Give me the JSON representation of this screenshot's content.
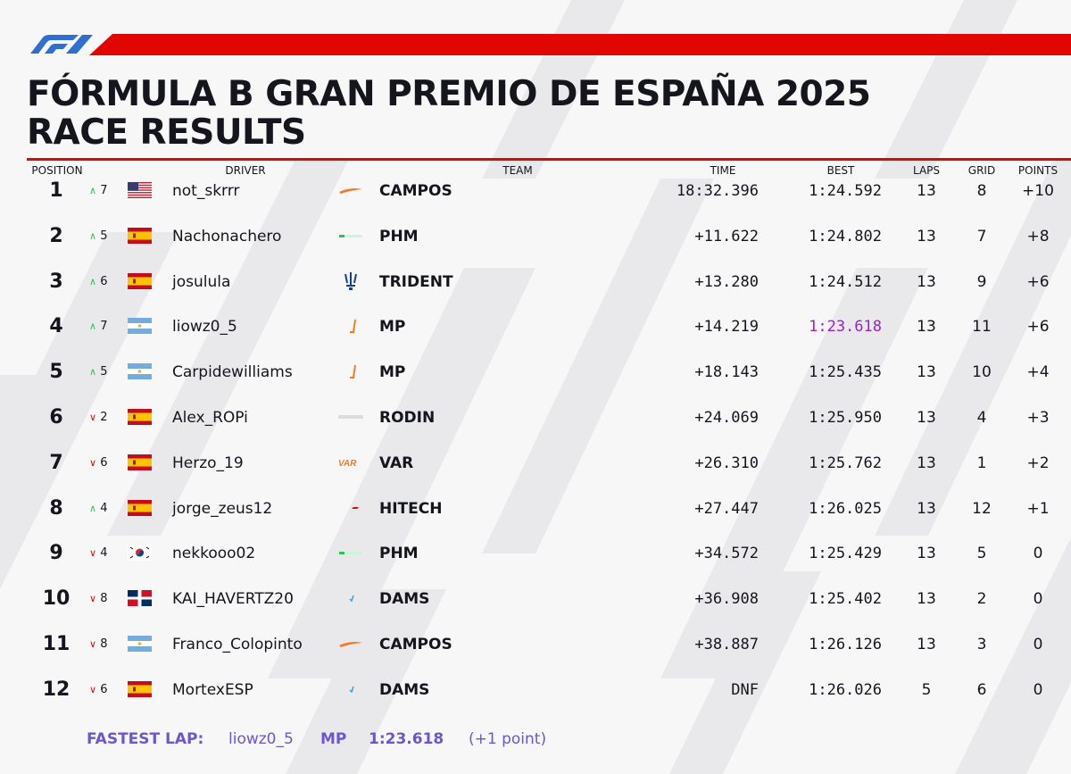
{
  "header": {
    "title_line1": "FÓRMULA B GRAN PREMIO DE ESPAÑA 2025",
    "title_line2": "RACE RESULTS",
    "brand_logo": "f1-logo",
    "accent_color": "#e10600"
  },
  "columns": {
    "position": "POSITION",
    "driver": "DRIVER",
    "team": "TEAM",
    "time": "TIME",
    "best": "BEST",
    "laps": "LAPS",
    "grid": "GRID",
    "points": "POINTS"
  },
  "rows": [
    {
      "position": "1",
      "dir": "up",
      "change": "7",
      "flag": "usa-flag",
      "driver": "not_skrrr",
      "team_logo": "campos-logo",
      "team": "CAMPOS",
      "time": "18:32.396",
      "best": "1:24.592",
      "laps": "13",
      "grid": "8",
      "points": "+10"
    },
    {
      "position": "2",
      "dir": "up",
      "change": "5",
      "flag": "spain-flag",
      "driver": "Nachonachero",
      "team_logo": "phm-logo",
      "team": "PHM",
      "time": "+11.622",
      "best": "1:24.802",
      "laps": "13",
      "grid": "7",
      "points": "+8"
    },
    {
      "position": "3",
      "dir": "up",
      "change": "6",
      "flag": "spain-flag",
      "driver": "josulula",
      "team_logo": "trident-logo",
      "team": "TRIDENT",
      "time": "+13.280",
      "best": "1:24.512",
      "laps": "13",
      "grid": "9",
      "points": "+6"
    },
    {
      "position": "4",
      "dir": "up",
      "change": "7",
      "flag": "argentina-flag",
      "driver": "liowz0_5",
      "team_logo": "mp-logo",
      "team": "MP",
      "time": "+14.219",
      "best": "1:23.618",
      "fastest": true,
      "laps": "13",
      "grid": "11",
      "points": "+6"
    },
    {
      "position": "5",
      "dir": "up",
      "change": "5",
      "flag": "argentina-flag",
      "driver": "Carpidewilliams",
      "team_logo": "mp-logo",
      "team": "MP",
      "time": "+18.143",
      "best": "1:25.435",
      "laps": "13",
      "grid": "10",
      "points": "+4"
    },
    {
      "position": "6",
      "dir": "down",
      "change": "2",
      "flag": "spain-flag",
      "driver": "Alex_ROPi",
      "team_logo": "rodin-logo",
      "team": "RODIN",
      "time": "+24.069",
      "best": "1:25.950",
      "laps": "13",
      "grid": "4",
      "points": "+3"
    },
    {
      "position": "7",
      "dir": "down",
      "change": "6",
      "flag": "spain-flag",
      "driver": "Herzo_19",
      "team_logo": "var-logo",
      "team": "VAR",
      "time": "+26.310",
      "best": "1:25.762",
      "laps": "13",
      "grid": "1",
      "points": "+2"
    },
    {
      "position": "8",
      "dir": "up",
      "change": "4",
      "flag": "spain-flag",
      "driver": "jorge_zeus12",
      "team_logo": "hitech-logo",
      "team": "HITECH",
      "time": "+27.447",
      "best": "1:26.025",
      "laps": "13",
      "grid": "12",
      "points": "+1"
    },
    {
      "position": "9",
      "dir": "down",
      "change": "4",
      "flag": "korea-flag",
      "driver": "nekkooo02",
      "team_logo": "phm-logo",
      "team": "PHM",
      "time": "+34.572",
      "best": "1:25.429",
      "laps": "13",
      "grid": "5",
      "points": "0"
    },
    {
      "position": "10",
      "dir": "down",
      "change": "8",
      "flag": "dominican-republic-flag",
      "driver": "KAI_HAVERTZ20",
      "team_logo": "dams-logo",
      "team": "DAMS",
      "time": "+36.908",
      "best": "1:25.402",
      "laps": "13",
      "grid": "2",
      "points": "0"
    },
    {
      "position": "11",
      "dir": "down",
      "change": "8",
      "flag": "argentina-flag",
      "driver": "Franco_Colopinto",
      "team_logo": "campos-logo",
      "team": "CAMPOS",
      "time": "+38.887",
      "best": "1:26.126",
      "laps": "13",
      "grid": "3",
      "points": "0"
    },
    {
      "position": "12",
      "dir": "down",
      "change": "6",
      "flag": "spain-flag",
      "driver": "MortexESP",
      "team_logo": "dams-logo",
      "team": "DAMS",
      "time": "DNF",
      "best": "1:26.026",
      "laps": "5",
      "grid": "6",
      "points": "0"
    }
  ],
  "footer": {
    "label": "FASTEST LAP:",
    "driver": "liowz0_5",
    "team": "MP",
    "time": "1:23.618",
    "note": "(+1 point)",
    "color": "#6e56cf"
  },
  "colors": {
    "up": "#2ec05a",
    "down": "#e10600",
    "fastest": "#a020c8"
  }
}
